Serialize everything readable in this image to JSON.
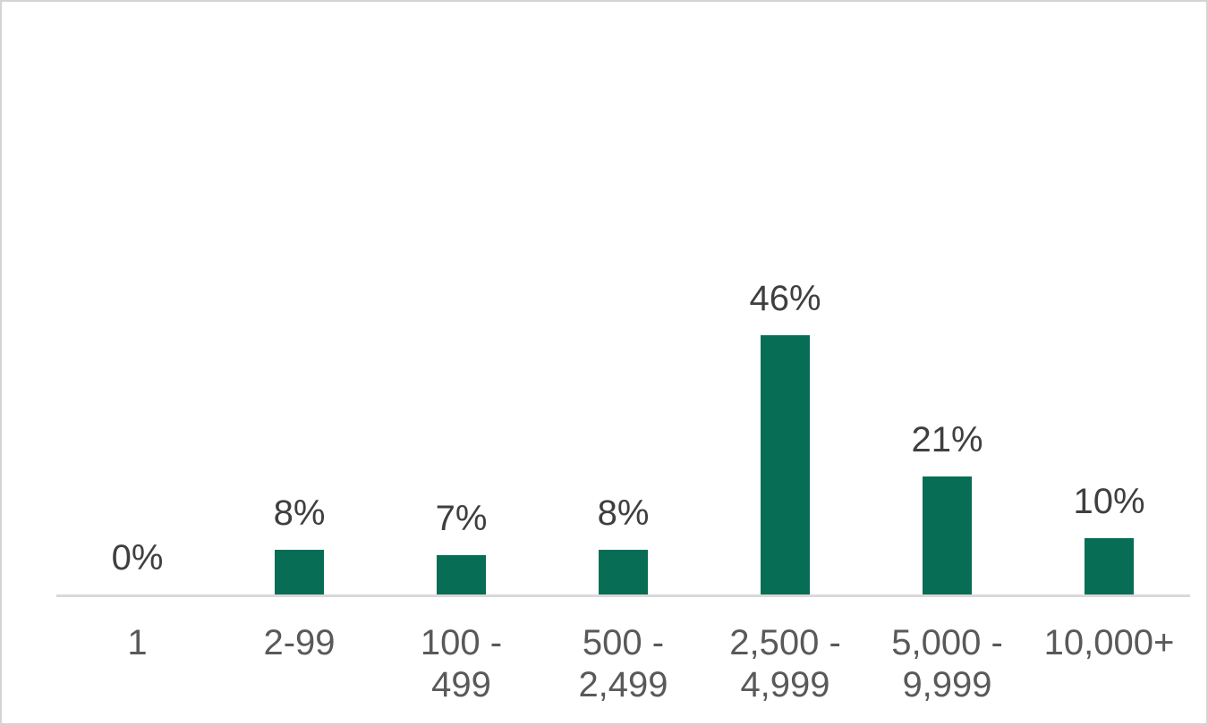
{
  "chart_data": {
    "type": "bar",
    "categories": [
      "1",
      "2-99",
      "100 -\n499",
      "500 -\n2,499",
      "2,500 -\n4,999",
      "5,000 -\n9,999",
      "10,000+"
    ],
    "values": [
      0,
      8,
      7,
      8,
      46,
      21,
      10
    ],
    "data_labels": [
      "0%",
      "8%",
      "7%",
      "8%",
      "46%",
      "21%",
      "10%"
    ],
    "value_suffix": "%",
    "ylim": [
      0,
      50
    ],
    "grid": false,
    "legend": "none",
    "y_axis_visible": false,
    "bar_color": "#086d55",
    "data_label_color": "#3f3f3f",
    "category_label_color": "#595959",
    "axis_line_color": "#d9d9d9",
    "frame_border_color": "#d4d4d4",
    "background_color": "#ffffff"
  }
}
